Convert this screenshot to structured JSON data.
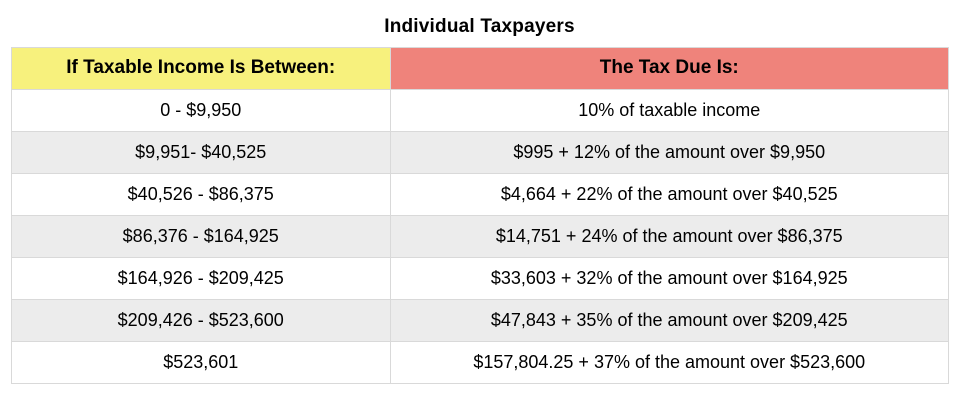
{
  "page_title": "Individual Taxpayers",
  "table": {
    "headers": [
      {
        "label": "If Taxable Income Is Between:"
      },
      {
        "label": "The Tax Due Is:"
      }
    ],
    "rows": [
      {
        "income": "0 - $9,950",
        "tax": "10% of taxable income"
      },
      {
        "income": "$9,951- $40,525",
        "tax": "$995 + 12% of the amount over $9,950"
      },
      {
        "income": "$40,526 - $86,375",
        "tax": "$4,664 + 22% of the amount over $40,525"
      },
      {
        "income": "$86,376 - $164,925",
        "tax": "$14,751 + 24% of the amount over $86,375"
      },
      {
        "income": "$164,926 - $209,425",
        "tax": "$33,603 + 32% of the amount over $164,925"
      },
      {
        "income": "$209,426 - $523,600",
        "tax": "$47,843 + 35% of the amount over $209,425"
      },
      {
        "income": "$523,601",
        "tax": "$157,804.25 + 37% of the amount over $523,600"
      }
    ]
  },
  "colors": {
    "income_header_bg": "#F7F17D",
    "tax_header_bg": "#EF837B",
    "row_alt_bg": "#ECECEC",
    "border": "#D9D9D9",
    "text": "#000000"
  },
  "chart_data": {
    "type": "table",
    "title": "Individual Taxpayers",
    "columns": [
      "If Taxable Income Is Between:",
      "The Tax Due Is:"
    ],
    "rows": [
      [
        "0 - $9,950",
        "10% of taxable income"
      ],
      [
        "$9,951- $40,525",
        "$995 + 12% of the amount over $9,950"
      ],
      [
        "$40,526 - $86,375",
        "$4,664 + 22% of the amount over $40,525"
      ],
      [
        "$86,376 - $164,925",
        "$14,751 + 24% of the amount over $86,375"
      ],
      [
        "$164,926 - $209,425",
        "$33,603 + 32% of the amount over $164,925"
      ],
      [
        "$209,426 - $523,600",
        "$47,843 + 35% of the amount over $209,425"
      ],
      [
        "$523,601",
        "$157,804.25 + 37% of the amount over $523,600"
      ]
    ]
  }
}
